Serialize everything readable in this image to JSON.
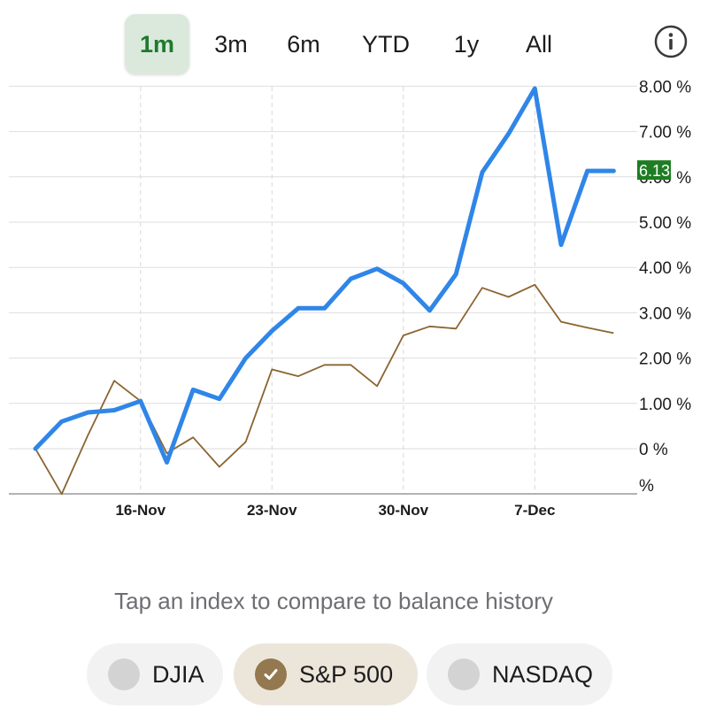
{
  "ranges": [
    {
      "label": "1m",
      "active": true
    },
    {
      "label": "3m",
      "active": false
    },
    {
      "label": "6m",
      "active": false
    },
    {
      "label": "YTD",
      "active": false
    },
    {
      "label": "1y",
      "active": false
    },
    {
      "label": "All",
      "active": false
    }
  ],
  "info_icon": "info-circle-icon",
  "colors": {
    "balance_line": "#2f86e8",
    "index_line": "#8b6430",
    "active_range_bg": "#dbe9dc",
    "active_range_text": "#1f7a2d",
    "current_badge": "#1e7d22",
    "selected_chip_bg": "#ece6da",
    "check_circle": "#94784f"
  },
  "chart_data": {
    "type": "line",
    "x_ticks": [
      "16-Nov",
      "23-Nov",
      "30-Nov",
      "7-Dec"
    ],
    "x_tick_positions": [
      4,
      9,
      14,
      19
    ],
    "y_ticks": [
      "8.00 %",
      "7.00 %",
      "6.00 %",
      "5.00 %",
      "4.00 %",
      "3.00 %",
      "2.00 %",
      "1.00 %",
      "0 %",
      "%"
    ],
    "ylim": [
      -1,
      8.2
    ],
    "current_value_label": "6.13",
    "series": [
      {
        "values": [
          0,
          0.6,
          0.8,
          0.85,
          1.05,
          -0.3,
          1.3,
          1.1,
          2.0,
          2.6,
          3.1,
          3.1,
          3.75,
          3.97,
          3.65,
          3.05,
          3.85,
          6.1,
          6.95,
          7.95,
          4.5,
          6.13,
          6.13
        ]
      },
      {
        "values": [
          0,
          -1.0,
          0.3,
          1.5,
          1.05,
          -0.1,
          0.25,
          -0.4,
          0.15,
          1.75,
          1.6,
          1.85,
          1.85,
          1.38,
          2.5,
          2.7,
          2.65,
          3.55,
          3.35,
          3.62,
          2.8,
          2.67,
          2.55
        ]
      }
    ]
  },
  "caption": "Tap an index to compare to balance history",
  "indices": [
    {
      "label": "DJIA",
      "selected": false
    },
    {
      "label": "S&P 500",
      "selected": true
    },
    {
      "label": "NASDAQ",
      "selected": false
    }
  ]
}
